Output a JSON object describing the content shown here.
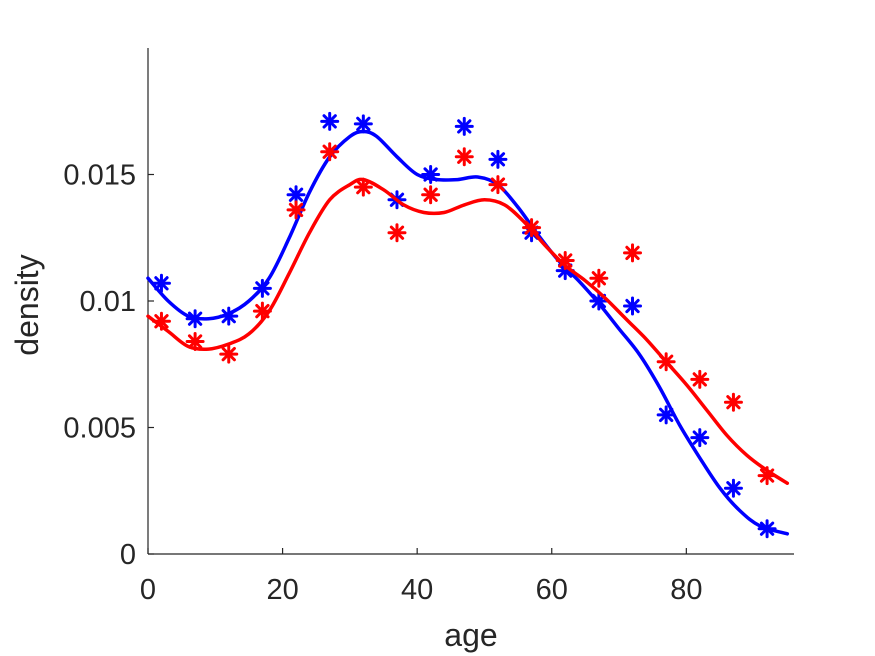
{
  "chart_data": {
    "type": "scatter",
    "title": "",
    "xlabel": "age",
    "ylabel": "density",
    "xlim": [
      0,
      96
    ],
    "ylim": [
      0,
      0.02
    ],
    "xticks": [
      0,
      20,
      40,
      60,
      80
    ],
    "xtick_labels": [
      "0",
      "20",
      "40",
      "60",
      "80"
    ],
    "yticks": [
      0,
      0.005,
      0.01,
      0.015
    ],
    "ytick_labels": [
      "0",
      "0.005",
      "0.01",
      "0.015"
    ],
    "grid": false,
    "legend": "none",
    "series": [
      {
        "name": "blue",
        "color": "#0000ff",
        "marker": "asterisk",
        "points": [
          [
            2,
            0.0107
          ],
          [
            7,
            0.0093
          ],
          [
            12,
            0.0094
          ],
          [
            17,
            0.0105
          ],
          [
            22,
            0.0142
          ],
          [
            27,
            0.0171
          ],
          [
            32,
            0.017
          ],
          [
            37,
            0.014
          ],
          [
            42,
            0.015
          ],
          [
            47,
            0.0169
          ],
          [
            52,
            0.0156
          ],
          [
            57,
            0.0127
          ],
          [
            62,
            0.0112
          ],
          [
            67,
            0.01
          ],
          [
            72,
            0.0098
          ],
          [
            77,
            0.0055
          ],
          [
            82,
            0.0046
          ],
          [
            87,
            0.0026
          ],
          [
            92,
            0.001
          ]
        ],
        "fit": [
          [
            0,
            0.0109
          ],
          [
            3,
            0.01
          ],
          [
            6,
            0.0094
          ],
          [
            9,
            0.0093
          ],
          [
            12,
            0.0095
          ],
          [
            15,
            0.01
          ],
          [
            18,
            0.0109
          ],
          [
            21,
            0.0125
          ],
          [
            24,
            0.0143
          ],
          [
            27,
            0.0157
          ],
          [
            30,
            0.0165
          ],
          [
            32,
            0.0167
          ],
          [
            34,
            0.0165
          ],
          [
            37,
            0.0157
          ],
          [
            40,
            0.015
          ],
          [
            43,
            0.0148
          ],
          [
            46,
            0.0148
          ],
          [
            49,
            0.0149
          ],
          [
            52,
            0.0146
          ],
          [
            55,
            0.0137
          ],
          [
            58,
            0.0126
          ],
          [
            61,
            0.0116
          ],
          [
            64,
            0.0108
          ],
          [
            67,
            0.0099
          ],
          [
            70,
            0.0089
          ],
          [
            73,
            0.0079
          ],
          [
            76,
            0.0066
          ],
          [
            79,
            0.0051
          ],
          [
            82,
            0.0038
          ],
          [
            85,
            0.0026
          ],
          [
            88,
            0.0017
          ],
          [
            91,
            0.0011
          ],
          [
            95,
            0.0008
          ]
        ]
      },
      {
        "name": "red",
        "color": "#ff0000",
        "marker": "asterisk",
        "points": [
          [
            2,
            0.0092
          ],
          [
            7,
            0.0084
          ],
          [
            12,
            0.0079
          ],
          [
            17,
            0.0096
          ],
          [
            22,
            0.0136
          ],
          [
            27,
            0.0159
          ],
          [
            32,
            0.0145
          ],
          [
            37,
            0.0127
          ],
          [
            42,
            0.0142
          ],
          [
            47,
            0.0157
          ],
          [
            52,
            0.0146
          ],
          [
            57,
            0.0129
          ],
          [
            62,
            0.0116
          ],
          [
            67,
            0.0109
          ],
          [
            72,
            0.0119
          ],
          [
            77,
            0.0076
          ],
          [
            82,
            0.0069
          ],
          [
            87,
            0.006
          ],
          [
            92,
            0.0031
          ]
        ],
        "fit": [
          [
            0,
            0.0094
          ],
          [
            3,
            0.0088
          ],
          [
            6,
            0.0082
          ],
          [
            9,
            0.0081
          ],
          [
            12,
            0.0083
          ],
          [
            15,
            0.0087
          ],
          [
            18,
            0.0096
          ],
          [
            21,
            0.0111
          ],
          [
            24,
            0.0127
          ],
          [
            27,
            0.014
          ],
          [
            30,
            0.0146
          ],
          [
            32,
            0.0148
          ],
          [
            35,
            0.0144
          ],
          [
            38,
            0.0138
          ],
          [
            41,
            0.0135
          ],
          [
            44,
            0.0135
          ],
          [
            47,
            0.0138
          ],
          [
            50,
            0.014
          ],
          [
            53,
            0.0138
          ],
          [
            56,
            0.0131
          ],
          [
            59,
            0.0122
          ],
          [
            62,
            0.0114
          ],
          [
            65,
            0.0108
          ],
          [
            68,
            0.0101
          ],
          [
            71,
            0.0093
          ],
          [
            74,
            0.0085
          ],
          [
            77,
            0.0076
          ],
          [
            80,
            0.0067
          ],
          [
            83,
            0.0057
          ],
          [
            86,
            0.0047
          ],
          [
            89,
            0.0039
          ],
          [
            92,
            0.0033
          ],
          [
            95,
            0.0028
          ]
        ]
      }
    ]
  }
}
